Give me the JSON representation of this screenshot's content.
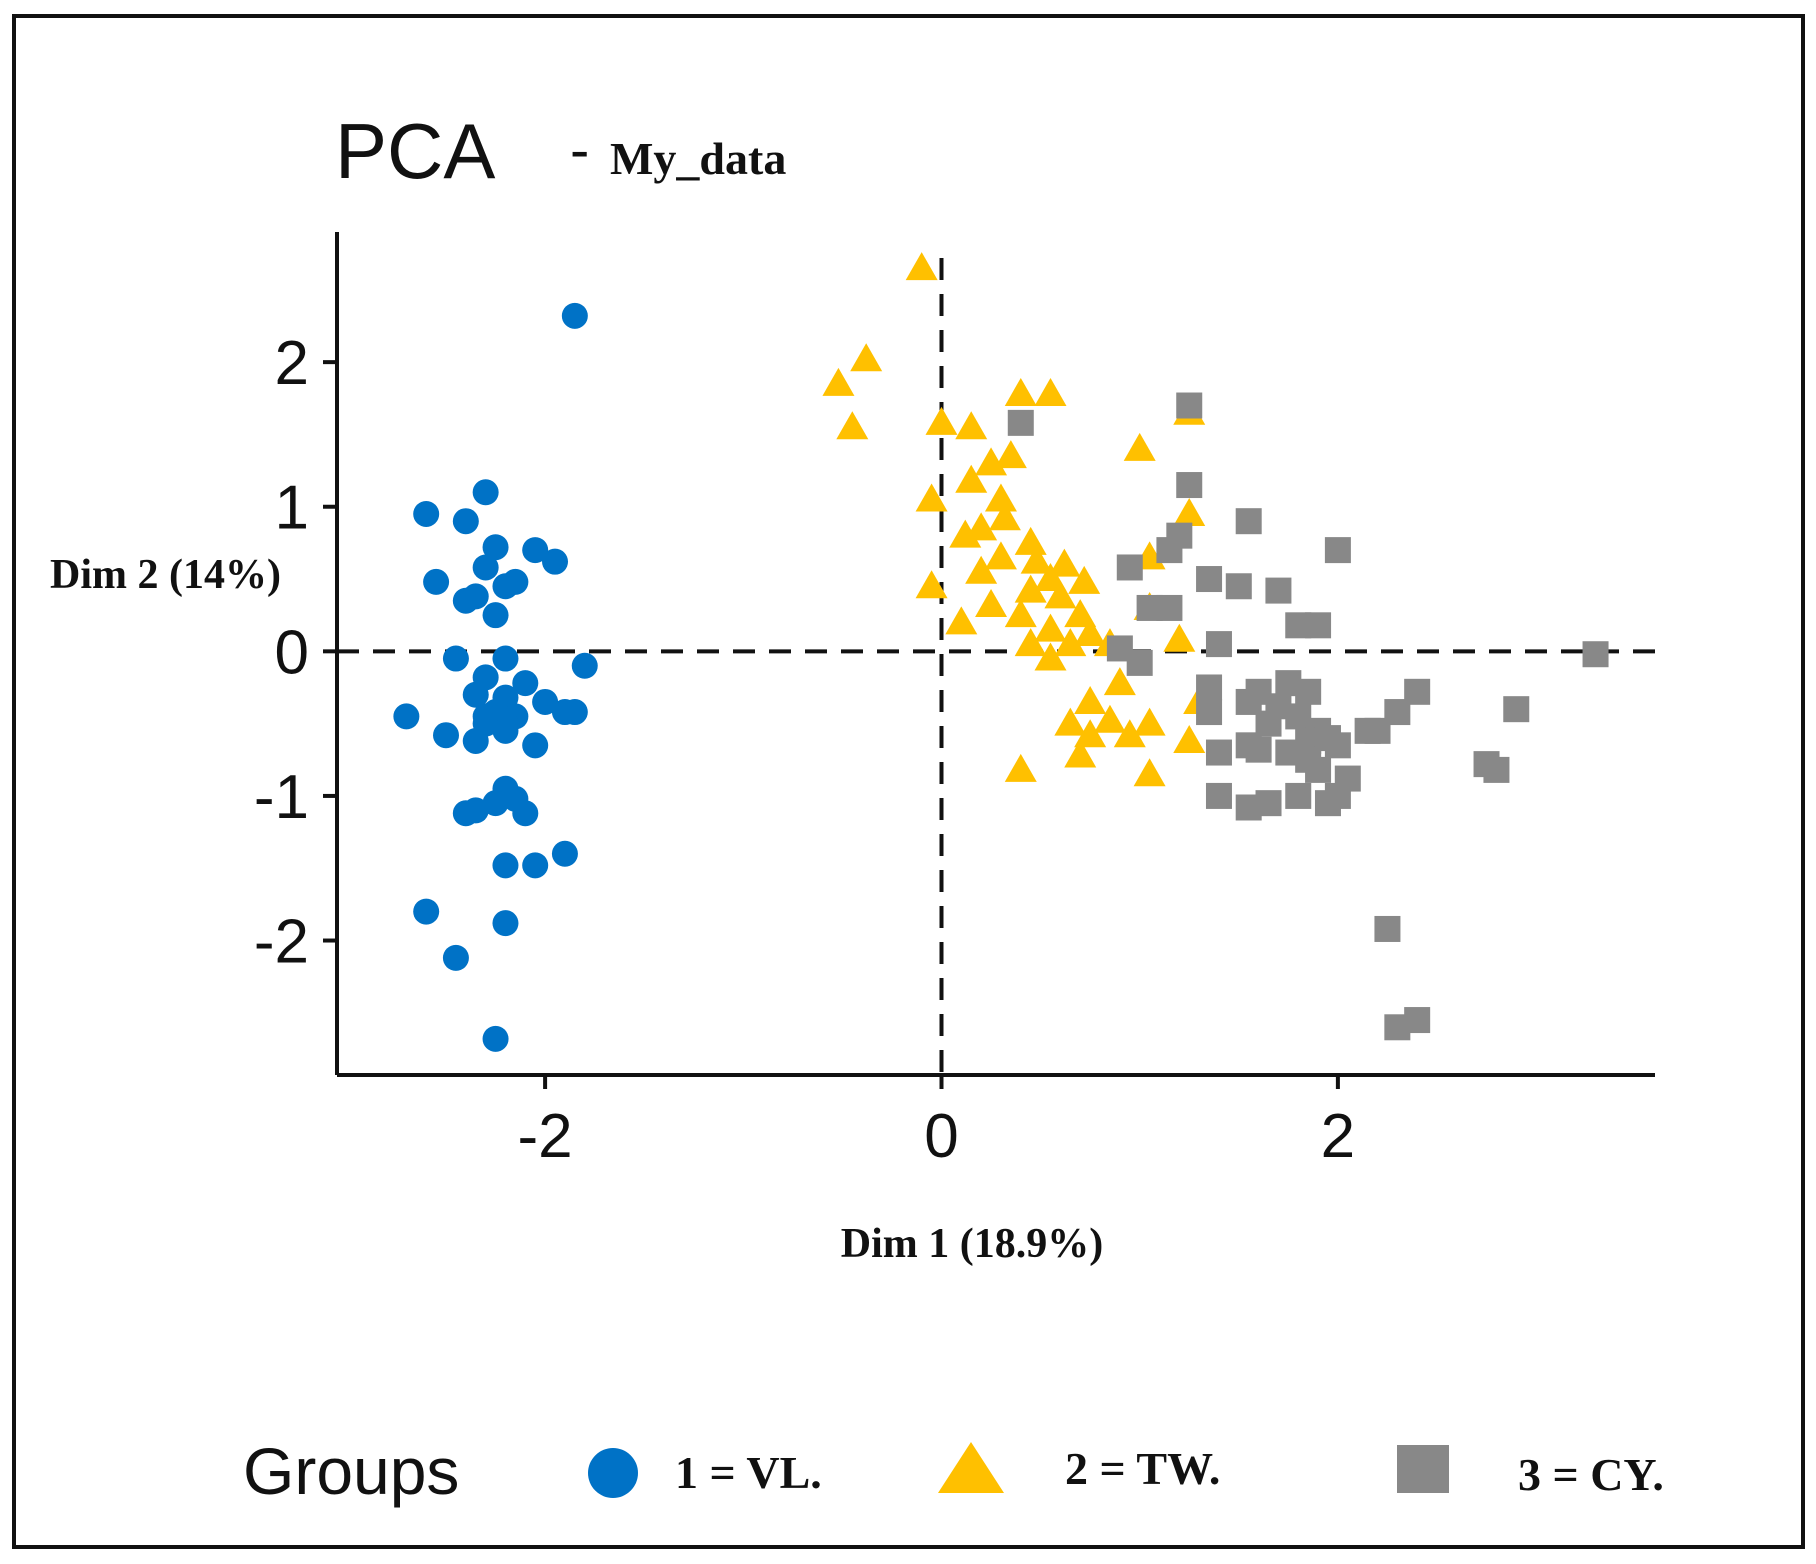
{
  "chart_data": {
    "type": "scatter",
    "title": "PCA",
    "subtitle": "My_data",
    "title_separator": "-",
    "xlabel": "Dim 1 (18.9%)",
    "ylabel": "Dim 2 (14%)",
    "xlim": [
      -3.05,
      3.6
    ],
    "ylim": [
      -2.93,
      2.9
    ],
    "xticks": [
      {
        "value": -2,
        "label": "-2"
      },
      {
        "value": 0,
        "label": "0"
      },
      {
        "value": 2,
        "label": "2"
      }
    ],
    "yticks": [
      {
        "value": -2,
        "label": "-2"
      },
      {
        "value": -1,
        "label": "-1"
      },
      {
        "value": 0,
        "label": "0"
      },
      {
        "value": 1,
        "label": "1"
      },
      {
        "value": 2,
        "label": "2"
      }
    ],
    "reference_lines": {
      "x": 0,
      "y": 0,
      "style": "dashed"
    },
    "legend": {
      "title": "Groups",
      "placement": "bottom"
    },
    "series": [
      {
        "name": "1 = VL.",
        "marker": "circle",
        "color": "#0072C6",
        "points": [
          [
            -1.85,
            2.32
          ],
          [
            -2.3,
            1.1
          ],
          [
            -2.6,
            0.95
          ],
          [
            -2.4,
            0.9
          ],
          [
            -2.25,
            0.72
          ],
          [
            -2.05,
            0.7
          ],
          [
            -1.95,
            0.62
          ],
          [
            -2.3,
            0.58
          ],
          [
            -2.15,
            0.48
          ],
          [
            -2.55,
            0.48
          ],
          [
            -2.35,
            0.38
          ],
          [
            -2.2,
            0.45
          ],
          [
            -2.4,
            0.35
          ],
          [
            -2.25,
            0.25
          ],
          [
            -2.45,
            -0.05
          ],
          [
            -2.2,
            -0.05
          ],
          [
            -1.8,
            -0.1
          ],
          [
            -2.3,
            -0.18
          ],
          [
            -2.1,
            -0.22
          ],
          [
            -2.35,
            -0.3
          ],
          [
            -2.2,
            -0.32
          ],
          [
            -2.0,
            -0.35
          ],
          [
            -1.9,
            -0.42
          ],
          [
            -2.25,
            -0.42
          ],
          [
            -2.3,
            -0.45
          ],
          [
            -2.15,
            -0.45
          ],
          [
            -1.85,
            -0.42
          ],
          [
            -2.7,
            -0.45
          ],
          [
            -2.2,
            -0.5
          ],
          [
            -2.3,
            -0.5
          ],
          [
            -2.5,
            -0.58
          ],
          [
            -2.35,
            -0.62
          ],
          [
            -2.2,
            -0.55
          ],
          [
            -2.05,
            -0.65
          ],
          [
            -2.2,
            -0.95
          ],
          [
            -2.15,
            -1.02
          ],
          [
            -2.25,
            -1.05
          ],
          [
            -2.4,
            -1.12
          ],
          [
            -2.35,
            -1.1
          ],
          [
            -2.1,
            -1.12
          ],
          [
            -1.9,
            -1.4
          ],
          [
            -2.2,
            -1.48
          ],
          [
            -2.05,
            -1.48
          ],
          [
            -2.6,
            -1.8
          ],
          [
            -2.2,
            -1.88
          ],
          [
            -2.45,
            -2.12
          ],
          [
            -2.25,
            -2.68
          ]
        ]
      },
      {
        "name": "2 = TW.",
        "marker": "triangle",
        "color": "#FFC000",
        "points": [
          [
            -0.1,
            2.65
          ],
          [
            -0.38,
            2.02
          ],
          [
            -0.52,
            1.85
          ],
          [
            -0.45,
            1.55
          ],
          [
            0.0,
            1.58
          ],
          [
            0.15,
            1.55
          ],
          [
            0.4,
            1.78
          ],
          [
            0.55,
            1.78
          ],
          [
            1.25,
            1.65
          ],
          [
            0.25,
            1.3
          ],
          [
            0.35,
            1.35
          ],
          [
            0.15,
            1.18
          ],
          [
            -0.05,
            1.05
          ],
          [
            0.3,
            1.05
          ],
          [
            0.2,
            0.85
          ],
          [
            0.32,
            0.92
          ],
          [
            0.45,
            0.75
          ],
          [
            0.12,
            0.8
          ],
          [
            0.3,
            0.65
          ],
          [
            0.48,
            0.62
          ],
          [
            0.62,
            0.6
          ],
          [
            0.2,
            0.55
          ],
          [
            0.55,
            0.5
          ],
          [
            0.72,
            0.48
          ],
          [
            -0.05,
            0.45
          ],
          [
            0.45,
            0.42
          ],
          [
            0.6,
            0.38
          ],
          [
            0.25,
            0.32
          ],
          [
            0.4,
            0.25
          ],
          [
            0.7,
            0.25
          ],
          [
            0.1,
            0.2
          ],
          [
            0.55,
            0.15
          ],
          [
            0.75,
            0.12
          ],
          [
            0.85,
            0.05
          ],
          [
            0.45,
            0.05
          ],
          [
            0.65,
            0.05
          ],
          [
            1.05,
            0.3
          ],
          [
            1.2,
            0.08
          ],
          [
            0.55,
            -0.05
          ],
          [
            0.9,
            -0.22
          ],
          [
            0.75,
            -0.35
          ],
          [
            1.3,
            -0.35
          ],
          [
            0.85,
            -0.48
          ],
          [
            0.65,
            -0.5
          ],
          [
            1.05,
            -0.5
          ],
          [
            0.75,
            -0.58
          ],
          [
            0.95,
            -0.58
          ],
          [
            1.25,
            -0.62
          ],
          [
            0.7,
            -0.72
          ],
          [
            0.4,
            -0.82
          ],
          [
            1.05,
            -0.85
          ],
          [
            1.0,
            1.4
          ],
          [
            1.25,
            0.95
          ],
          [
            1.05,
            0.65
          ]
        ]
      },
      {
        "name": "3 = CY.",
        "marker": "square",
        "color": "#888888",
        "points": [
          [
            0.4,
            1.58
          ],
          [
            1.25,
            1.7
          ],
          [
            1.25,
            1.15
          ],
          [
            1.55,
            0.9
          ],
          [
            1.2,
            0.8
          ],
          [
            1.15,
            0.7
          ],
          [
            2.0,
            0.7
          ],
          [
            0.95,
            0.58
          ],
          [
            1.35,
            0.5
          ],
          [
            1.5,
            0.45
          ],
          [
            1.7,
            0.42
          ],
          [
            1.05,
            0.3
          ],
          [
            1.15,
            0.3
          ],
          [
            1.8,
            0.18
          ],
          [
            1.9,
            0.18
          ],
          [
            0.9,
            0.02
          ],
          [
            1.0,
            -0.08
          ],
          [
            1.4,
            0.05
          ],
          [
            3.3,
            -0.02
          ],
          [
            1.35,
            -0.25
          ],
          [
            1.6,
            -0.28
          ],
          [
            1.75,
            -0.22
          ],
          [
            1.85,
            -0.28
          ],
          [
            1.55,
            -0.35
          ],
          [
            1.7,
            -0.38
          ],
          [
            1.35,
            -0.42
          ],
          [
            1.8,
            -0.45
          ],
          [
            2.4,
            -0.28
          ],
          [
            2.3,
            -0.42
          ],
          [
            2.9,
            -0.4
          ],
          [
            1.65,
            -0.5
          ],
          [
            1.9,
            -0.55
          ],
          [
            1.85,
            -0.62
          ],
          [
            1.95,
            -0.6
          ],
          [
            2.15,
            -0.55
          ],
          [
            2.2,
            -0.55
          ],
          [
            1.6,
            -0.68
          ],
          [
            1.75,
            -0.7
          ],
          [
            1.85,
            -0.75
          ],
          [
            1.4,
            -0.7
          ],
          [
            1.55,
            -0.65
          ],
          [
            2.0,
            -0.65
          ],
          [
            1.9,
            -0.82
          ],
          [
            2.05,
            -0.88
          ],
          [
            1.4,
            -1.0
          ],
          [
            1.65,
            -1.05
          ],
          [
            1.8,
            -1.0
          ],
          [
            2.0,
            -1.0
          ],
          [
            2.8,
            -0.82
          ],
          [
            2.75,
            -0.78
          ],
          [
            1.55,
            -1.08
          ],
          [
            1.95,
            -1.05
          ],
          [
            2.25,
            -1.92
          ],
          [
            2.3,
            -2.6
          ],
          [
            2.4,
            -2.55
          ]
        ]
      }
    ]
  }
}
